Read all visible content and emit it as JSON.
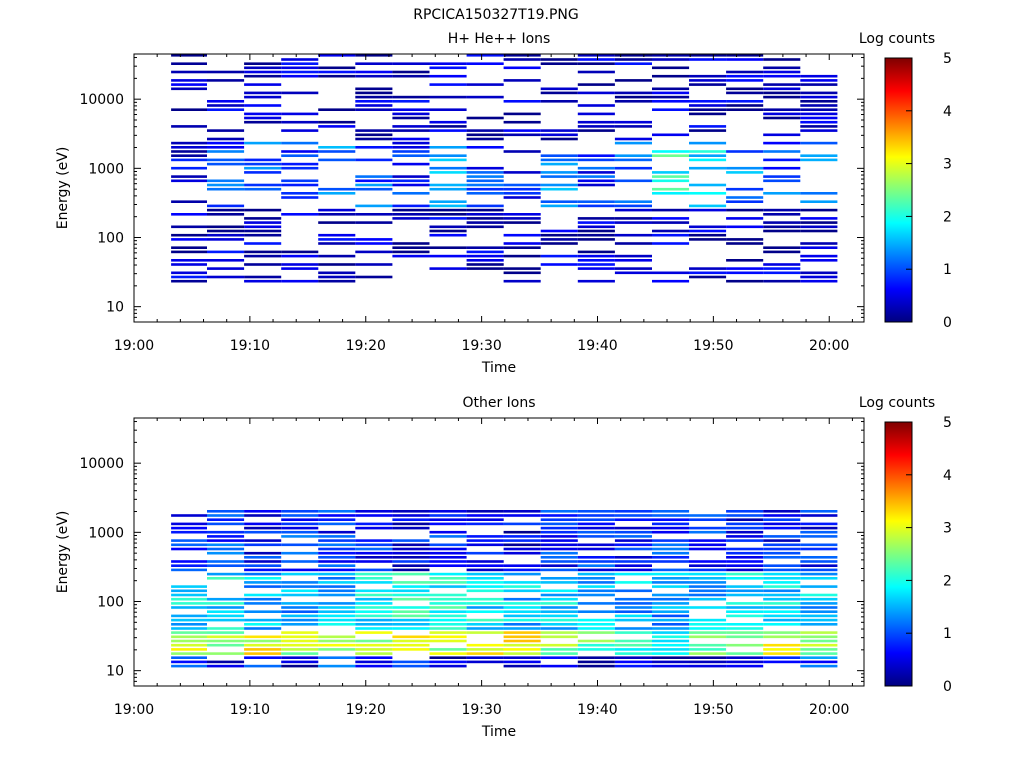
{
  "figure": {
    "title": "RPCICA150327T19.PNG"
  },
  "colormap": [
    "#00007f",
    "#0000ff",
    "#007fff",
    "#00ffff",
    "#7fff7f",
    "#ffff00",
    "#ff7f00",
    "#ff0000",
    "#7f0000"
  ],
  "chart_data": [
    {
      "type": "heatmap",
      "title": "H+ He++ Ions",
      "xlabel": "Time",
      "ylabel": "Energy (eV)",
      "colorbar_label": "Log counts",
      "colorbar_ticks": [
        "0",
        "1",
        "2",
        "3",
        "4",
        "5"
      ],
      "clim": [
        0,
        5
      ],
      "x_range_min": [
        0,
        63
      ],
      "x_ticks": [
        "19:00",
        "19:10",
        "19:20",
        "19:30",
        "19:40",
        "19:50",
        "20:00"
      ],
      "y_scale": "log",
      "y_range": [
        6,
        45000
      ],
      "y_ticks": [
        "10",
        "100",
        "1000",
        "10000"
      ],
      "time_bins_min": [
        [
          3.2,
          6.3
        ],
        [
          6.3,
          9.5
        ],
        [
          9.5,
          12.7
        ],
        [
          12.7,
          15.9
        ],
        [
          15.9,
          19.1
        ],
        [
          19.1,
          22.3
        ],
        [
          22.3,
          25.5
        ],
        [
          25.5,
          28.7
        ],
        [
          28.7,
          31.9
        ],
        [
          31.9,
          35.1
        ],
        [
          35.1,
          38.3
        ],
        [
          38.3,
          41.5
        ],
        [
          41.5,
          44.7
        ],
        [
          44.7,
          47.9
        ],
        [
          47.9,
          51.1
        ],
        [
          51.1,
          54.3
        ],
        [
          54.3,
          57.5
        ],
        [
          57.5,
          60.7
        ]
      ],
      "bands": [
        {
          "emin": 250,
          "emax": 2500,
          "col_values": [
            0.5,
            0.9,
            1.0,
            0.8,
            1.4,
            1.0,
            0.8,
            1.3,
            0.9,
            0.7,
            1.2,
            0.8,
            1.0,
            2.0,
            1.8,
            1.3,
            1.0,
            1.2
          ]
        },
        {
          "emin": 20,
          "emax": 45000,
          "col_values": [
            0.3,
            0.3,
            0.3,
            0.3,
            0.3,
            0.3,
            0.3,
            0.3,
            0.3,
            0.3,
            0.3,
            0.3,
            0.3,
            0.3,
            0.3,
            0.3,
            0.3,
            0.3
          ]
        }
      ]
    },
    {
      "type": "heatmap",
      "title": "Other Ions",
      "xlabel": "Time",
      "ylabel": "Energy (eV)",
      "colorbar_label": "Log counts",
      "colorbar_ticks": [
        "0",
        "1",
        "2",
        "3",
        "4",
        "5"
      ],
      "clim": [
        0,
        5
      ],
      "x_range_min": [
        0,
        63
      ],
      "x_ticks": [
        "19:00",
        "19:10",
        "19:20",
        "19:30",
        "19:40",
        "19:50",
        "20:00"
      ],
      "y_scale": "log",
      "y_range": [
        6,
        45000
      ],
      "y_ticks": [
        "10",
        "100",
        "1000",
        "10000"
      ],
      "time_bins_min": [
        [
          3.2,
          6.3
        ],
        [
          6.3,
          9.5
        ],
        [
          9.5,
          12.7
        ],
        [
          12.7,
          15.9
        ],
        [
          15.9,
          19.1
        ],
        [
          19.1,
          22.3
        ],
        [
          22.3,
          25.5
        ],
        [
          25.5,
          28.7
        ],
        [
          28.7,
          31.9
        ],
        [
          31.9,
          35.1
        ],
        [
          35.1,
          38.3
        ],
        [
          38.3,
          41.5
        ],
        [
          41.5,
          44.7
        ],
        [
          44.7,
          47.9
        ],
        [
          47.9,
          51.1
        ],
        [
          51.1,
          54.3
        ],
        [
          54.3,
          57.5
        ],
        [
          57.5,
          60.7
        ]
      ],
      "bands": [
        {
          "emin": 15,
          "emax": 38,
          "col_values": [
            2.8,
            2.7,
            3.0,
            2.6,
            2.9,
            2.8,
            3.1,
            2.8,
            2.9,
            3.2,
            2.6,
            2.4,
            2.2,
            2.0,
            2.3,
            2.4,
            2.9,
            2.7
          ]
        },
        {
          "emin": 38,
          "emax": 250,
          "col_values": [
            1.7,
            1.8,
            1.5,
            1.4,
            1.6,
            1.8,
            1.9,
            2.0,
            1.8,
            1.6,
            1.7,
            1.6,
            1.5,
            1.4,
            1.5,
            1.7,
            1.7,
            1.6
          ]
        },
        {
          "emin": 250,
          "emax": 2000,
          "col_values": [
            0.8,
            0.9,
            0.7,
            0.9,
            0.8,
            0.7,
            0.6,
            0.9,
            0.7,
            0.5,
            0.8,
            0.8,
            0.7,
            0.8,
            0.8,
            0.6,
            0.7,
            0.7
          ]
        },
        {
          "emin": 11,
          "emax": 15,
          "col_values": [
            1.0,
            0.3,
            1.0,
            0.3,
            1.0,
            0.3,
            1.0,
            0.3,
            0.5,
            0.3,
            0.3,
            0.3,
            0.3,
            0.3,
            0.3,
            0.3,
            1.0,
            1.0
          ]
        }
      ]
    }
  ]
}
